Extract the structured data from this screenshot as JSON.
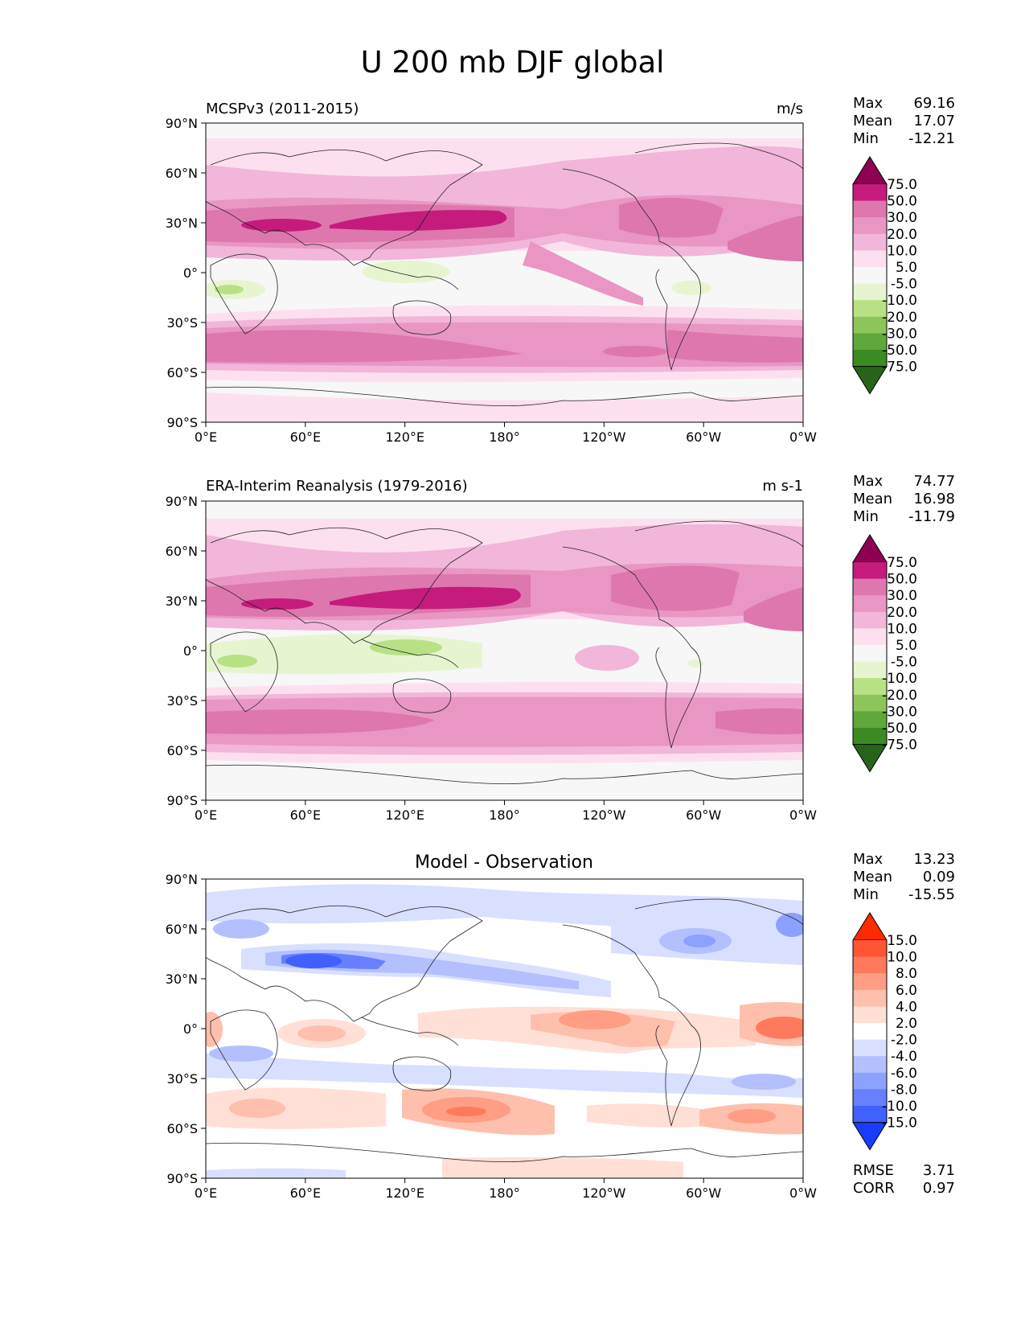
{
  "title": "U 200 mb DJF global",
  "lat_ticks": [
    "90°N",
    "60°N",
    "30°N",
    "0°",
    "30°S",
    "60°S",
    "90°S"
  ],
  "lon_ticks": [
    "0°E",
    "60°E",
    "120°E",
    "180°",
    "120°W",
    "60°W",
    "0°W"
  ],
  "panels": [
    {
      "left_title": "MCSPv3 (2011-2015)",
      "center_title": "",
      "units": "m/s",
      "stats": {
        "max_label": "Max",
        "max": "69.16",
        "mean_label": "Mean",
        "mean": "17.07",
        "min_label": "Min",
        "min": "-12.21"
      },
      "colorbar": {
        "labels": [
          "75.0",
          "50.0",
          "30.0",
          "20.0",
          "10.0",
          "5.0",
          "-5.0",
          "-10.0",
          "-20.0",
          "-30.0",
          "-50.0",
          "-75.0"
        ],
        "colors": [
          "#8e0152",
          "#c51b7d",
          "#de77ae",
          "#e996c4",
          "#f1b6da",
          "#fde0ef",
          "#f7f7f7",
          "#e6f5d0",
          "#b8e186",
          "#8dc55b",
          "#5fa73b",
          "#3b8a24",
          "#276419"
        ]
      }
    },
    {
      "left_title": "ERA-Interim Reanalysis (1979-2016)",
      "center_title": "",
      "units": "m s-1",
      "stats": {
        "max_label": "Max",
        "max": "74.77",
        "mean_label": "Mean",
        "mean": "16.98",
        "min_label": "Min",
        "min": "-11.79"
      },
      "colorbar": {
        "labels": [
          "75.0",
          "50.0",
          "30.0",
          "20.0",
          "10.0",
          "5.0",
          "-5.0",
          "-10.0",
          "-20.0",
          "-30.0",
          "-50.0",
          "-75.0"
        ],
        "colors": [
          "#8e0152",
          "#c51b7d",
          "#de77ae",
          "#e996c4",
          "#f1b6da",
          "#fde0ef",
          "#f7f7f7",
          "#e6f5d0",
          "#b8e186",
          "#8dc55b",
          "#5fa73b",
          "#3b8a24",
          "#276419"
        ]
      }
    },
    {
      "left_title": "",
      "center_title": "Model - Observation",
      "units": "",
      "stats": {
        "max_label": "Max",
        "max": "13.23",
        "mean_label": "Mean",
        "mean": "0.09",
        "min_label": "Min",
        "min": "-15.55"
      },
      "colorbar": {
        "labels": [
          "15.0",
          "10.0",
          "8.0",
          "6.0",
          "4.0",
          "2.0",
          "-2.0",
          "-4.0",
          "-6.0",
          "-8.0",
          "-10.0",
          "-15.0"
        ],
        "colors": [
          "#ff2a00",
          "#ff5533",
          "#ff7a5c",
          "#ff9d85",
          "#ffbfad",
          "#ffdfd6",
          "#ffffff",
          "#d9dfff",
          "#b3bfff",
          "#8ca0ff",
          "#6680ff",
          "#4060ff",
          "#1a3cff"
        ]
      },
      "rmse_label": "RMSE",
      "rmse": "3.71",
      "corr_label": "CORR",
      "corr": "0.97"
    }
  ]
}
